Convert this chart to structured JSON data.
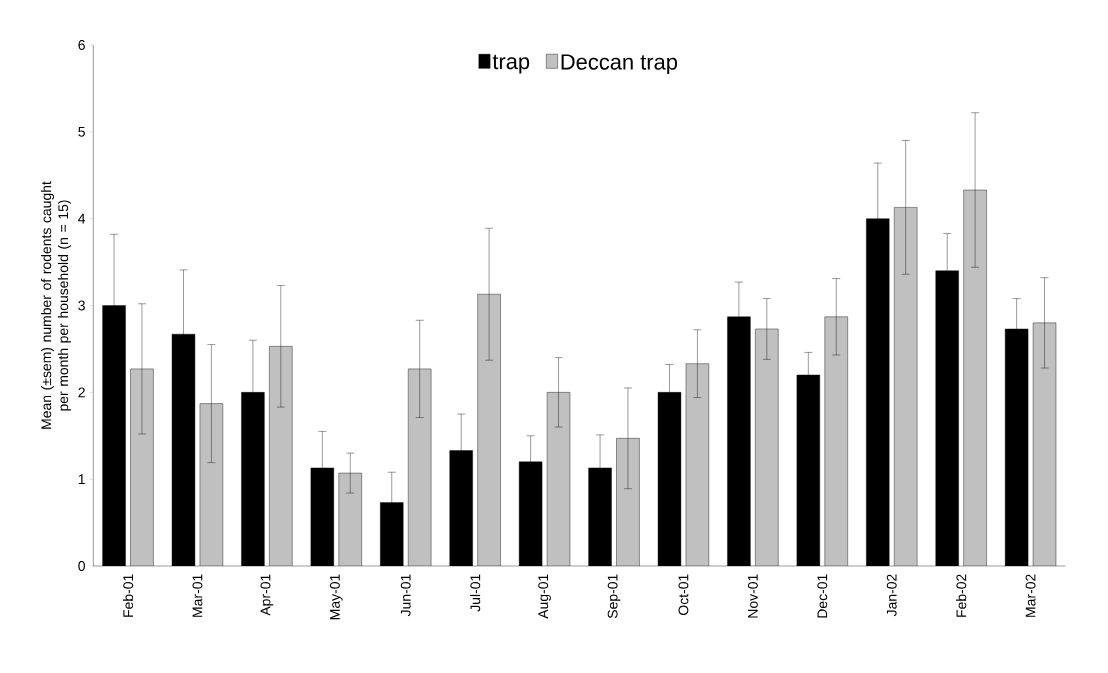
{
  "chart_data": {
    "type": "bar",
    "ylabel": "Mean (±sem) number of rodents caught per month per household (n = 15)",
    "categories": [
      "Feb-01",
      "Mar-01",
      "Apr-01",
      "May-01",
      "Jun-01",
      "Jul-01",
      "Aug-01",
      "Sep-01",
      "Oct-01",
      "Nov-01",
      "Dec-01",
      "Jan-02",
      "Feb-02",
      "Mar-02"
    ],
    "series": [
      {
        "name": "trap",
        "color": "#000000",
        "values": [
          3.0,
          2.67,
          2.0,
          1.13,
          0.73,
          1.33,
          1.2,
          1.13,
          2.0,
          2.87,
          2.2,
          4.0,
          3.4,
          2.73
        ],
        "errors": [
          0.82,
          0.74,
          0.6,
          0.42,
          0.35,
          0.42,
          0.3,
          0.38,
          0.32,
          0.4,
          0.26,
          0.64,
          0.43,
          0.35
        ]
      },
      {
        "name": "Deccan trap",
        "color": "#c0c0c0",
        "values": [
          2.27,
          1.87,
          2.53,
          1.07,
          2.27,
          3.13,
          2.0,
          1.47,
          2.33,
          2.73,
          2.87,
          4.13,
          4.33,
          2.8
        ],
        "errors": [
          0.75,
          0.68,
          0.7,
          0.23,
          0.56,
          0.76,
          0.4,
          0.58,
          0.39,
          0.35,
          0.44,
          0.77,
          0.89,
          0.52
        ]
      }
    ],
    "ylim": [
      0,
      6
    ],
    "yticks": [
      0,
      1,
      2,
      3,
      4,
      5,
      6
    ],
    "grid": false,
    "legend": "top"
  }
}
